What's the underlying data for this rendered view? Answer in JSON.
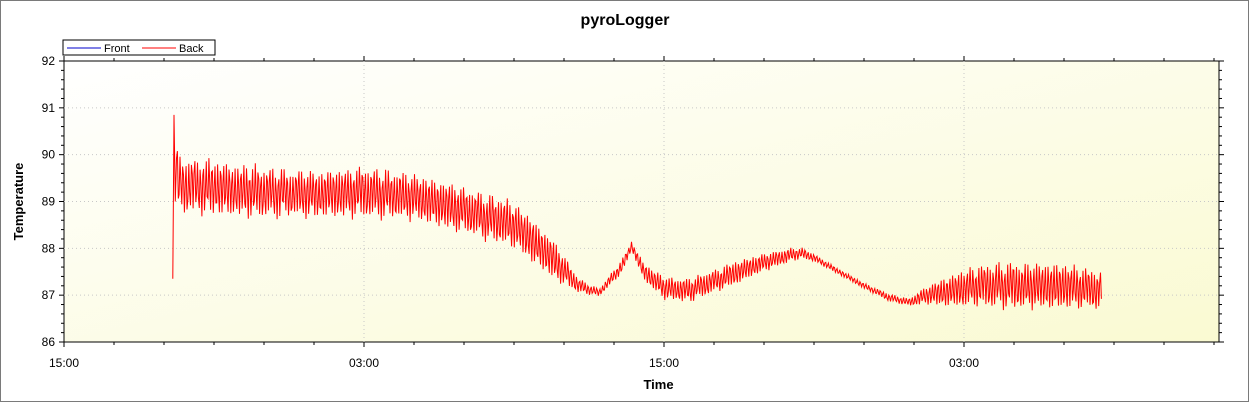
{
  "chart_data": {
    "type": "line",
    "title": "pyroLogger",
    "xlabel": "Time",
    "ylabel": "Temperature",
    "ylim": [
      86,
      92
    ],
    "xlim": [
      0,
      38
    ],
    "y_ticks": [
      "86",
      "87",
      "88",
      "89",
      "90",
      "91",
      "92"
    ],
    "x_ticks": [
      {
        "value": 0,
        "label": "15:00"
      },
      {
        "value": 12,
        "label": "03:00"
      },
      {
        "value": 24,
        "label": "15:00"
      },
      {
        "value": 36,
        "label": "03:00"
      }
    ],
    "x_unit": "hours after first 15:00 tick",
    "grid": true,
    "legend_position": "top-left",
    "series": [
      {
        "name": "Front",
        "color": "#0000cc",
        "points": []
      },
      {
        "name": "Back",
        "color": "#ff0000",
        "style": "oscillating",
        "points": [
          {
            "x": 4.35,
            "center": 87.35,
            "amp": 0.0
          },
          {
            "x": 4.45,
            "center": 90.5,
            "amp": 0.3
          },
          {
            "x": 4.55,
            "center": 89.35,
            "amp": 0.6
          },
          {
            "x": 6.0,
            "center": 89.3,
            "amp": 0.6
          },
          {
            "x": 8.0,
            "center": 89.2,
            "amp": 0.55
          },
          {
            "x": 10.0,
            "center": 89.15,
            "amp": 0.5
          },
          {
            "x": 12.0,
            "center": 89.2,
            "amp": 0.55
          },
          {
            "x": 14.0,
            "center": 89.1,
            "amp": 0.5
          },
          {
            "x": 16.0,
            "center": 88.8,
            "amp": 0.5
          },
          {
            "x": 18.0,
            "center": 88.5,
            "amp": 0.5
          },
          {
            "x": 19.5,
            "center": 87.8,
            "amp": 0.45
          },
          {
            "x": 20.6,
            "center": 87.2,
            "amp": 0.15
          },
          {
            "x": 21.4,
            "center": 87.05,
            "amp": 0.08
          },
          {
            "x": 22.3,
            "center": 87.6,
            "amp": 0.15
          },
          {
            "x": 22.7,
            "center": 88.05,
            "amp": 0.1
          },
          {
            "x": 23.2,
            "center": 87.5,
            "amp": 0.2
          },
          {
            "x": 24.0,
            "center": 87.15,
            "amp": 0.25
          },
          {
            "x": 25.0,
            "center": 87.1,
            "amp": 0.25
          },
          {
            "x": 26.0,
            "center": 87.3,
            "amp": 0.25
          },
          {
            "x": 27.0,
            "center": 87.5,
            "amp": 0.25
          },
          {
            "x": 28.0,
            "center": 87.7,
            "amp": 0.2
          },
          {
            "x": 29.0,
            "center": 87.85,
            "amp": 0.15
          },
          {
            "x": 29.5,
            "center": 87.9,
            "amp": 0.12
          },
          {
            "x": 30.0,
            "center": 87.8,
            "amp": 0.08
          },
          {
            "x": 31.0,
            "center": 87.5,
            "amp": 0.06
          },
          {
            "x": 32.0,
            "center": 87.2,
            "amp": 0.06
          },
          {
            "x": 33.0,
            "center": 86.95,
            "amp": 0.08
          },
          {
            "x": 33.8,
            "center": 86.85,
            "amp": 0.08
          },
          {
            "x": 34.5,
            "center": 87.0,
            "amp": 0.2
          },
          {
            "x": 35.5,
            "center": 87.1,
            "amp": 0.35
          },
          {
            "x": 36.5,
            "center": 87.2,
            "amp": 0.45
          },
          {
            "x": 38.0,
            "center": 87.2,
            "amp": 0.5
          },
          {
            "x": 40.0,
            "center": 87.2,
            "amp": 0.5
          },
          {
            "x": 41.5,
            "center": 87.1,
            "amp": 0.4
          }
        ]
      }
    ]
  }
}
